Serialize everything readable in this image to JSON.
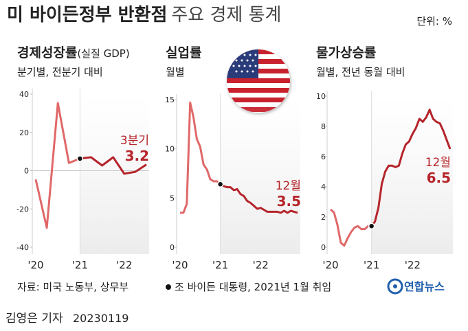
{
  "header": {
    "title_bold": "미 바이든정부 반환점",
    "title_rest": "주요 경제 통계",
    "unit": "단위: %"
  },
  "chart_data": [
    {
      "type": "line",
      "title": "경제성장률",
      "title_note": "(실질 GDP)",
      "subtitle": "분기별, 전분기 대비",
      "categories": [
        "'20",
        null,
        null,
        null,
        "'21",
        null,
        null,
        null,
        "'22",
        null,
        null
      ],
      "series": [
        {
          "color": "#e06868",
          "values": [
            -4.6,
            -29.9,
            35.3,
            4.0,
            6.3,
            null,
            null,
            null,
            null,
            null,
            null
          ]
        },
        {
          "color": "#b5242a",
          "values": [
            null,
            null,
            null,
            null,
            6.3,
            7.0,
            2.7,
            7.0,
            -1.6,
            -0.6,
            3.2
          ]
        }
      ],
      "ylim": [
        -40,
        40
      ],
      "yticks": [
        -40,
        -20,
        0,
        20,
        40
      ],
      "annotation": "3분기"
    },
    {
      "type": "line",
      "title": "실업률",
      "subtitle": "월별",
      "categories": [
        "'20",
        null,
        null,
        null,
        null,
        null,
        null,
        null,
        null,
        null,
        null,
        null,
        "'21",
        null,
        null,
        null,
        null,
        null,
        null,
        null,
        null,
        null,
        null,
        null,
        "'22",
        null,
        null,
        null,
        null,
        null,
        null,
        null,
        null,
        null,
        null,
        null
      ],
      "series": [
        {
          "color": "#e06868",
          "values": [
            3.5,
            3.5,
            4.4,
            14.7,
            13.2,
            11.0,
            10.2,
            8.4,
            7.9,
            6.9,
            6.7,
            6.7,
            6.4,
            null,
            null,
            null,
            null,
            null,
            null,
            null,
            null,
            null,
            null,
            null,
            null,
            null,
            null,
            null,
            null,
            null,
            null,
            null,
            null,
            null,
            null,
            null
          ]
        },
        {
          "color": "#b5242a",
          "values": [
            null,
            null,
            null,
            null,
            null,
            null,
            null,
            null,
            null,
            null,
            null,
            null,
            6.4,
            6.2,
            6.1,
            6.1,
            5.8,
            5.9,
            5.4,
            5.2,
            4.7,
            4.5,
            4.2,
            3.9,
            4.0,
            3.8,
            3.6,
            3.6,
            3.6,
            3.6,
            3.5,
            3.7,
            3.5,
            3.7,
            3.6,
            3.5
          ]
        }
      ],
      "ylim": [
        0,
        15
      ],
      "yticks": [
        0,
        5,
        10,
        15
      ],
      "annotation": "12월"
    },
    {
      "type": "line",
      "title": "물가상승률",
      "subtitle": "월별, 전년 동월 대비",
      "categories": [
        "'20",
        null,
        null,
        null,
        null,
        null,
        null,
        null,
        null,
        null,
        null,
        null,
        "'21",
        null,
        null,
        null,
        null,
        null,
        null,
        null,
        null,
        null,
        null,
        null,
        "'22",
        null,
        null,
        null,
        null,
        null,
        null,
        null,
        null,
        null,
        null,
        null
      ],
      "series": [
        {
          "color": "#e06868",
          "values": [
            2.5,
            2.3,
            1.5,
            0.3,
            0.1,
            0.6,
            1.0,
            1.3,
            1.4,
            1.2,
            1.2,
            1.4,
            1.4,
            null,
            null,
            null,
            null,
            null,
            null,
            null,
            null,
            null,
            null,
            null,
            null,
            null,
            null,
            null,
            null,
            null,
            null,
            null,
            null,
            null,
            null,
            null
          ]
        },
        {
          "color": "#b5242a",
          "values": [
            null,
            null,
            null,
            null,
            null,
            null,
            null,
            null,
            null,
            null,
            null,
            null,
            1.4,
            1.7,
            2.6,
            4.2,
            5.0,
            5.4,
            5.4,
            5.3,
            5.4,
            6.2,
            6.8,
            7.0,
            7.5,
            7.9,
            8.5,
            8.3,
            8.6,
            9.1,
            8.5,
            8.3,
            8.2,
            7.7,
            7.1,
            6.5
          ]
        }
      ],
      "ylim": [
        0,
        10
      ],
      "yticks": [
        0,
        2,
        4,
        6,
        8,
        10
      ],
      "annotation": "12월"
    }
  ],
  "footer": {
    "source": "자료: 미국 노동부, 상무부",
    "note": "조 바이든 대통령, 2021년 1월 취임",
    "logo": "연합뉴스",
    "byline": "김영은 기자",
    "date": "20230119"
  }
}
